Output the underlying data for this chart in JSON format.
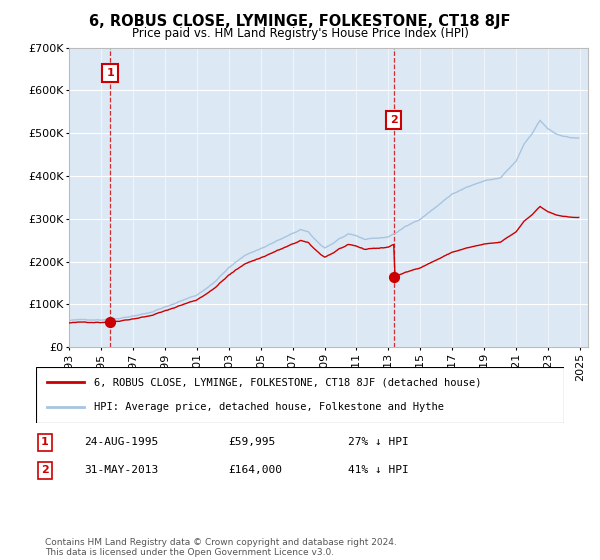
{
  "title": "6, ROBUS CLOSE, LYMINGE, FOLKESTONE, CT18 8JF",
  "subtitle": "Price paid vs. HM Land Registry's House Price Index (HPI)",
  "ylim": [
    0,
    700000
  ],
  "yticks": [
    0,
    100000,
    200000,
    300000,
    400000,
    500000,
    600000,
    700000
  ],
  "hpi_color": "#a8c4e0",
  "price_color": "#cc0000",
  "sale1_year": 1995,
  "sale1_month": 8,
  "sale1_price": 59995,
  "sale2_year": 2013,
  "sale2_month": 5,
  "sale2_price": 164000,
  "legend_house_label": "6, ROBUS CLOSE, LYMINGE, FOLKESTONE, CT18 8JF (detached house)",
  "legend_hpi_label": "HPI: Average price, detached house, Folkestone and Hythe",
  "annotation1_date": "24-AUG-1995",
  "annotation1_price": "£59,995",
  "annotation1_hpi": "27% ↓ HPI",
  "annotation2_date": "31-MAY-2013",
  "annotation2_price": "£164,000",
  "annotation2_hpi": "41% ↓ HPI",
  "footer": "Contains HM Land Registry data © Crown copyright and database right 2024.\nThis data is licensed under the Open Government Licence v3.0.",
  "plot_bg_color": "#dce9f5",
  "hatch_color": "#c0c0c0",
  "xlim_start": 1993.0,
  "xlim_end": 2025.5
}
